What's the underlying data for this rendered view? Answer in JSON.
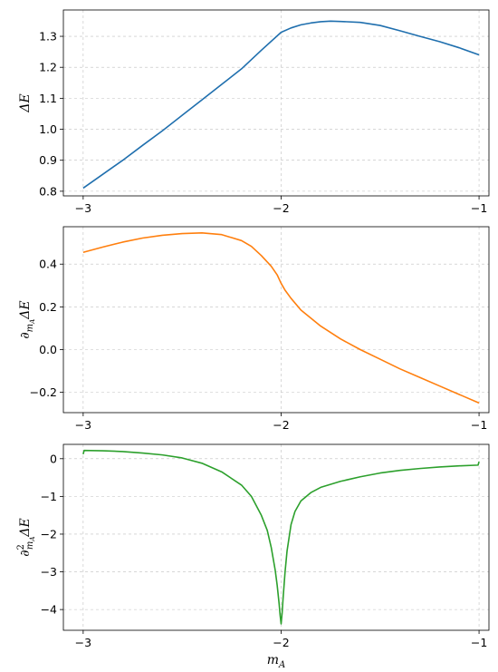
{
  "chart_data": [
    {
      "type": "line",
      "ylabel_parts": {
        "main": "ΔE",
        "sub": "",
        "sup": ""
      },
      "xlabel": "",
      "xlim": [
        -3.1,
        -0.95
      ],
      "ylim": [
        0.785,
        1.385
      ],
      "xticks": [
        -3,
        -2,
        -1
      ],
      "xtick_labels": [
        "−3",
        "−2",
        "−1"
      ],
      "yticks": [
        0.8,
        0.9,
        1.0,
        1.1,
        1.2,
        1.3
      ],
      "ytick_labels": [
        "0.8",
        "0.9",
        "1.0",
        "1.1",
        "1.2",
        "1.3"
      ],
      "grid": true,
      "color": "#1f6fae",
      "x": [
        -3.0,
        -2.9,
        -2.8,
        -2.7,
        -2.6,
        -2.5,
        -2.4,
        -2.3,
        -2.2,
        -2.1,
        -2.0,
        -1.95,
        -1.9,
        -1.85,
        -1.8,
        -1.75,
        -1.7,
        -1.6,
        -1.5,
        -1.4,
        -1.3,
        -1.2,
        -1.1,
        -1.0
      ],
      "y": [
        0.81,
        0.855,
        0.9,
        0.948,
        0.995,
        1.045,
        1.095,
        1.145,
        1.195,
        1.255,
        1.313,
        1.327,
        1.337,
        1.343,
        1.347,
        1.349,
        1.348,
        1.345,
        1.335,
        1.318,
        1.3,
        1.283,
        1.263,
        1.24
      ]
    },
    {
      "type": "line",
      "ylabel_parts": {
        "main": "ΔE",
        "sub": "",
        "sup": ""
      },
      "xlabel": "",
      "xlim": [
        -3.1,
        -0.95
      ],
      "ylim": [
        -0.295,
        0.575
      ],
      "xticks": [
        -3,
        -2,
        -1
      ],
      "xtick_labels": [
        "−3",
        "−2",
        "−1"
      ],
      "yticks": [
        -0.2,
        0.0,
        0.2,
        0.4
      ],
      "ytick_labels": [
        "−0.2",
        "0.0",
        "0.2",
        "0.4"
      ],
      "grid": true,
      "color": "#ff7f0e",
      "x": [
        -3.0,
        -2.9,
        -2.8,
        -2.7,
        -2.6,
        -2.5,
        -2.4,
        -2.3,
        -2.2,
        -2.15,
        -2.1,
        -2.05,
        -2.02,
        -2.0,
        -1.98,
        -1.95,
        -1.9,
        -1.8,
        -1.7,
        -1.6,
        -1.5,
        -1.4,
        -1.3,
        -1.2,
        -1.1,
        -1.0
      ],
      "y": [
        0.455,
        0.48,
        0.503,
        0.522,
        0.535,
        0.543,
        0.546,
        0.538,
        0.51,
        0.483,
        0.44,
        0.39,
        0.35,
        0.31,
        0.278,
        0.24,
        0.185,
        0.11,
        0.05,
        0.0,
        -0.045,
        -0.09,
        -0.13,
        -0.17,
        -0.21,
        -0.25
      ]
    },
    {
      "type": "line",
      "ylabel_parts": {
        "main": "ΔE",
        "sub": "",
        "sup": "2"
      },
      "xlabel": "m_A",
      "xlim": [
        -3.1,
        -0.95
      ],
      "ylim": [
        -4.55,
        0.38
      ],
      "xticks": [
        -3,
        -2,
        -1
      ],
      "xtick_labels": [
        "−3",
        "−2",
        "−1"
      ],
      "yticks": [
        -4,
        -3,
        -2,
        -1,
        0
      ],
      "ytick_labels": [
        "−4",
        "−3",
        "−2",
        "−1",
        "0"
      ],
      "grid": true,
      "color": "#2ca02c",
      "x": [
        -3.0,
        -2.995,
        -2.9,
        -2.8,
        -2.7,
        -2.6,
        -2.5,
        -2.4,
        -2.3,
        -2.2,
        -2.15,
        -2.1,
        -2.07,
        -2.05,
        -2.03,
        -2.02,
        -2.01,
        -2.005,
        -2.0,
        -1.995,
        -1.99,
        -1.98,
        -1.97,
        -1.95,
        -1.93,
        -1.9,
        -1.85,
        -1.8,
        -1.7,
        -1.6,
        -1.5,
        -1.4,
        -1.3,
        -1.2,
        -1.1,
        -1.005,
        -1.0
      ],
      "y": [
        0.12,
        0.22,
        0.21,
        0.19,
        0.15,
        0.1,
        0.02,
        -0.12,
        -0.35,
        -0.7,
        -1.0,
        -1.5,
        -1.9,
        -2.35,
        -2.95,
        -3.35,
        -3.85,
        -4.15,
        -4.38,
        -4.1,
        -3.7,
        -3.0,
        -2.45,
        -1.75,
        -1.4,
        -1.12,
        -0.9,
        -0.76,
        -0.6,
        -0.48,
        -0.38,
        -0.31,
        -0.26,
        -0.22,
        -0.19,
        -0.17,
        -0.08
      ]
    }
  ]
}
